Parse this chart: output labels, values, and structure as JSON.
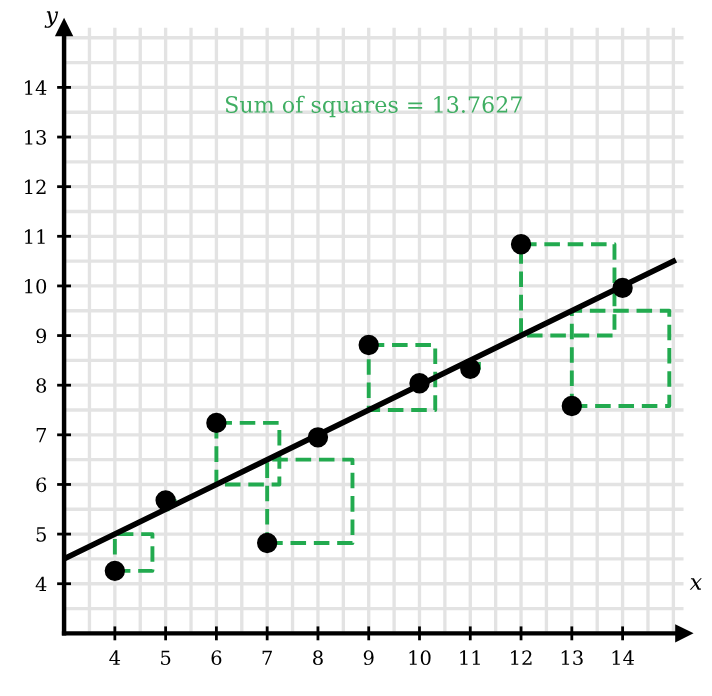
{
  "chart_data": {
    "type": "scatter",
    "title": "Sum of squares = 13.7627",
    "xlabel": "x",
    "ylabel": "y",
    "xlim": [
      3,
      15.2
    ],
    "ylim": [
      3,
      15.2
    ],
    "xticks": [
      4,
      5,
      6,
      7,
      8,
      9,
      10,
      11,
      12,
      13,
      14
    ],
    "yticks": [
      4,
      5,
      6,
      7,
      8,
      9,
      10,
      11,
      12,
      13,
      14
    ],
    "grid": true,
    "series": [
      {
        "color": "#000000",
        "marker": "circle",
        "x": [
          10,
          8,
          13,
          9,
          11,
          14,
          6,
          4,
          12,
          7,
          5
        ],
        "values": [
          8.04,
          6.95,
          7.58,
          8.81,
          8.33,
          9.96,
          7.24,
          4.26,
          10.84,
          4.82,
          5.68
        ]
      },
      {
        "type": "line",
        "color": "#000000",
        "line_style": "solid",
        "marker": "none",
        "x": [
          3,
          15
        ],
        "values": [
          4.5,
          10.5
        ]
      }
    ]
  }
}
